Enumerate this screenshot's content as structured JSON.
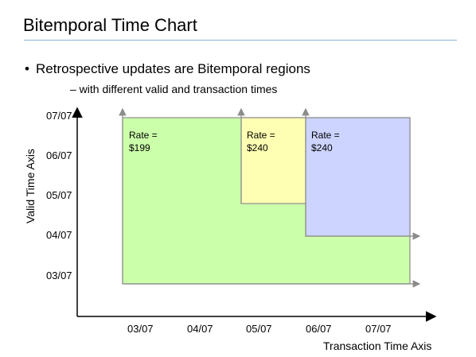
{
  "slide": {
    "title": "Bitemporal Time Chart",
    "bullet_marker": "•",
    "bullet": "Retrospective updates are Bitemporal regions",
    "sub_bullet": "– with different valid and transaction times"
  },
  "axes": {
    "x_label": "Transaction Time Axis",
    "y_label": "Valid Time Axis",
    "x_ticks": [
      "03/07",
      "04/07",
      "05/07",
      "06/07",
      "07/07"
    ],
    "y_ticks": [
      "07/07",
      "06/07",
      "05/07",
      "04/07",
      "03/07"
    ]
  },
  "regions": [
    {
      "name": "rate-199",
      "rate_label": "Rate =",
      "rate_value": "$199",
      "fill": "#ccffaa"
    },
    {
      "name": "rate-240-yellow",
      "rate_label": "Rate =",
      "rate_value": "$240",
      "fill": "#ffffb3"
    },
    {
      "name": "rate-240-blue",
      "rate_label": "Rate =",
      "rate_value": "$240",
      "fill": "#ccd4ff"
    }
  ],
  "colors": {
    "title_rule": "#8fb0db",
    "region_border": "#8c8c8c",
    "arrow": "#8c8c8c",
    "axis": "#000000"
  }
}
